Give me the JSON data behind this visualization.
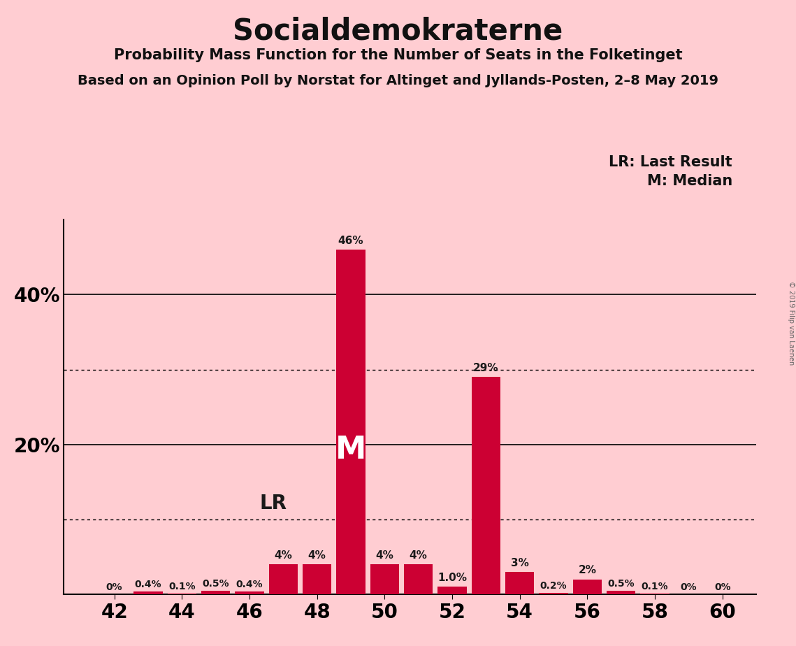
{
  "title": "Socialdemokraterne",
  "subtitle1": "Probability Mass Function for the Number of Seats in the Folketinget",
  "subtitle2": "Based on an Opinion Poll by Norstat for Altinget and Jyllands-Posten, 2–8 May 2019",
  "watermark": "© 2019 Filip van Laenen",
  "legend_lr": "LR: Last Result",
  "legend_m": "M: Median",
  "background_color": "#FFCDD2",
  "bar_color": "#CC0033",
  "seats": [
    42,
    43,
    44,
    45,
    46,
    47,
    48,
    49,
    50,
    51,
    52,
    53,
    54,
    55,
    56,
    57,
    58,
    59,
    60
  ],
  "values": [
    0.0,
    0.4,
    0.1,
    0.5,
    0.4,
    4.0,
    4.0,
    46.0,
    4.0,
    4.0,
    1.0,
    29.0,
    3.0,
    0.2,
    2.0,
    0.5,
    0.1,
    0.0,
    0.0
  ],
  "labels": [
    "0%",
    "0.4%",
    "0.1%",
    "0.5%",
    "0.4%",
    "4%",
    "4%",
    "46%",
    "4%",
    "4%",
    "1.0%",
    "29%",
    "3%",
    "0.2%",
    "2%",
    "0.5%",
    "0.1%",
    "0%",
    "0%"
  ],
  "median_seat": 49,
  "lr_seat": 47,
  "ylim_max": 50,
  "dotted_lines": [
    10.0,
    30.0
  ],
  "solid_lines": [
    20.0,
    40.0
  ],
  "xticks": [
    42,
    44,
    46,
    48,
    50,
    52,
    54,
    56,
    58,
    60
  ],
  "ytick_positions": [
    20,
    40
  ],
  "ytick_labels": [
    "20%",
    "40%"
  ]
}
